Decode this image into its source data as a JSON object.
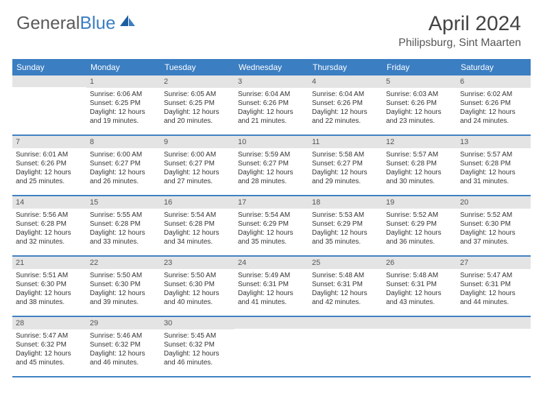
{
  "logo": {
    "text1": "General",
    "text2": "Blue"
  },
  "title": "April 2024",
  "location": "Philipsburg, Sint Maarten",
  "weekdays": [
    "Sunday",
    "Monday",
    "Tuesday",
    "Wednesday",
    "Thursday",
    "Friday",
    "Saturday"
  ],
  "colors": {
    "header_bg": "#3b7ec2",
    "daynum_bg": "#e4e4e4",
    "text": "#333333"
  },
  "weeks": [
    [
      {
        "n": "",
        "sr": "",
        "ss": "",
        "dl": ""
      },
      {
        "n": "1",
        "sr": "Sunrise: 6:06 AM",
        "ss": "Sunset: 6:25 PM",
        "dl": "Daylight: 12 hours and 19 minutes."
      },
      {
        "n": "2",
        "sr": "Sunrise: 6:05 AM",
        "ss": "Sunset: 6:25 PM",
        "dl": "Daylight: 12 hours and 20 minutes."
      },
      {
        "n": "3",
        "sr": "Sunrise: 6:04 AM",
        "ss": "Sunset: 6:26 PM",
        "dl": "Daylight: 12 hours and 21 minutes."
      },
      {
        "n": "4",
        "sr": "Sunrise: 6:04 AM",
        "ss": "Sunset: 6:26 PM",
        "dl": "Daylight: 12 hours and 22 minutes."
      },
      {
        "n": "5",
        "sr": "Sunrise: 6:03 AM",
        "ss": "Sunset: 6:26 PM",
        "dl": "Daylight: 12 hours and 23 minutes."
      },
      {
        "n": "6",
        "sr": "Sunrise: 6:02 AM",
        "ss": "Sunset: 6:26 PM",
        "dl": "Daylight: 12 hours and 24 minutes."
      }
    ],
    [
      {
        "n": "7",
        "sr": "Sunrise: 6:01 AM",
        "ss": "Sunset: 6:26 PM",
        "dl": "Daylight: 12 hours and 25 minutes."
      },
      {
        "n": "8",
        "sr": "Sunrise: 6:00 AM",
        "ss": "Sunset: 6:27 PM",
        "dl": "Daylight: 12 hours and 26 minutes."
      },
      {
        "n": "9",
        "sr": "Sunrise: 6:00 AM",
        "ss": "Sunset: 6:27 PM",
        "dl": "Daylight: 12 hours and 27 minutes."
      },
      {
        "n": "10",
        "sr": "Sunrise: 5:59 AM",
        "ss": "Sunset: 6:27 PM",
        "dl": "Daylight: 12 hours and 28 minutes."
      },
      {
        "n": "11",
        "sr": "Sunrise: 5:58 AM",
        "ss": "Sunset: 6:27 PM",
        "dl": "Daylight: 12 hours and 29 minutes."
      },
      {
        "n": "12",
        "sr": "Sunrise: 5:57 AM",
        "ss": "Sunset: 6:28 PM",
        "dl": "Daylight: 12 hours and 30 minutes."
      },
      {
        "n": "13",
        "sr": "Sunrise: 5:57 AM",
        "ss": "Sunset: 6:28 PM",
        "dl": "Daylight: 12 hours and 31 minutes."
      }
    ],
    [
      {
        "n": "14",
        "sr": "Sunrise: 5:56 AM",
        "ss": "Sunset: 6:28 PM",
        "dl": "Daylight: 12 hours and 32 minutes."
      },
      {
        "n": "15",
        "sr": "Sunrise: 5:55 AM",
        "ss": "Sunset: 6:28 PM",
        "dl": "Daylight: 12 hours and 33 minutes."
      },
      {
        "n": "16",
        "sr": "Sunrise: 5:54 AM",
        "ss": "Sunset: 6:28 PM",
        "dl": "Daylight: 12 hours and 34 minutes."
      },
      {
        "n": "17",
        "sr": "Sunrise: 5:54 AM",
        "ss": "Sunset: 6:29 PM",
        "dl": "Daylight: 12 hours and 35 minutes."
      },
      {
        "n": "18",
        "sr": "Sunrise: 5:53 AM",
        "ss": "Sunset: 6:29 PM",
        "dl": "Daylight: 12 hours and 35 minutes."
      },
      {
        "n": "19",
        "sr": "Sunrise: 5:52 AM",
        "ss": "Sunset: 6:29 PM",
        "dl": "Daylight: 12 hours and 36 minutes."
      },
      {
        "n": "20",
        "sr": "Sunrise: 5:52 AM",
        "ss": "Sunset: 6:30 PM",
        "dl": "Daylight: 12 hours and 37 minutes."
      }
    ],
    [
      {
        "n": "21",
        "sr": "Sunrise: 5:51 AM",
        "ss": "Sunset: 6:30 PM",
        "dl": "Daylight: 12 hours and 38 minutes."
      },
      {
        "n": "22",
        "sr": "Sunrise: 5:50 AM",
        "ss": "Sunset: 6:30 PM",
        "dl": "Daylight: 12 hours and 39 minutes."
      },
      {
        "n": "23",
        "sr": "Sunrise: 5:50 AM",
        "ss": "Sunset: 6:30 PM",
        "dl": "Daylight: 12 hours and 40 minutes."
      },
      {
        "n": "24",
        "sr": "Sunrise: 5:49 AM",
        "ss": "Sunset: 6:31 PM",
        "dl": "Daylight: 12 hours and 41 minutes."
      },
      {
        "n": "25",
        "sr": "Sunrise: 5:48 AM",
        "ss": "Sunset: 6:31 PM",
        "dl": "Daylight: 12 hours and 42 minutes."
      },
      {
        "n": "26",
        "sr": "Sunrise: 5:48 AM",
        "ss": "Sunset: 6:31 PM",
        "dl": "Daylight: 12 hours and 43 minutes."
      },
      {
        "n": "27",
        "sr": "Sunrise: 5:47 AM",
        "ss": "Sunset: 6:31 PM",
        "dl": "Daylight: 12 hours and 44 minutes."
      }
    ],
    [
      {
        "n": "28",
        "sr": "Sunrise: 5:47 AM",
        "ss": "Sunset: 6:32 PM",
        "dl": "Daylight: 12 hours and 45 minutes."
      },
      {
        "n": "29",
        "sr": "Sunrise: 5:46 AM",
        "ss": "Sunset: 6:32 PM",
        "dl": "Daylight: 12 hours and 46 minutes."
      },
      {
        "n": "30",
        "sr": "Sunrise: 5:45 AM",
        "ss": "Sunset: 6:32 PM",
        "dl": "Daylight: 12 hours and 46 minutes."
      },
      {
        "n": "",
        "sr": "",
        "ss": "",
        "dl": ""
      },
      {
        "n": "",
        "sr": "",
        "ss": "",
        "dl": ""
      },
      {
        "n": "",
        "sr": "",
        "ss": "",
        "dl": ""
      },
      {
        "n": "",
        "sr": "",
        "ss": "",
        "dl": ""
      }
    ]
  ]
}
